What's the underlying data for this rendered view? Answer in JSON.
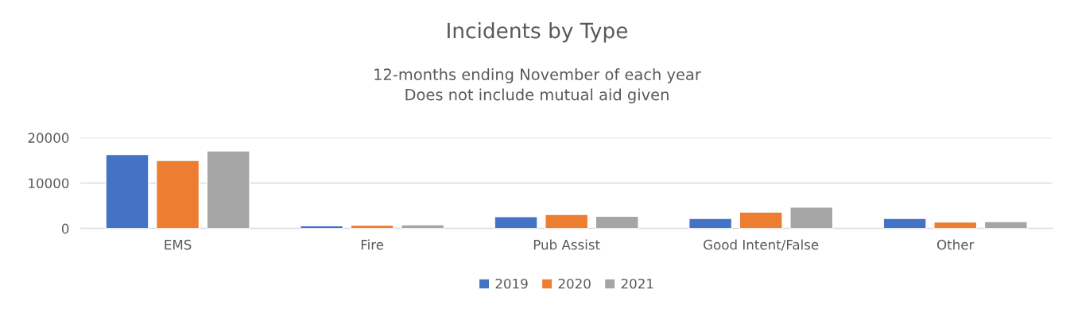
{
  "chart_data": {
    "type": "bar",
    "title": "Incidents by Type",
    "subtitle": "12-months ending November of each year\nDoes not include mutual aid given",
    "categories": [
      "EMS",
      "Fire",
      "Pub Assist",
      "Good Intent/False",
      "Other"
    ],
    "series": [
      {
        "name": "2019",
        "color": "#4472c4",
        "values": [
          16300,
          600,
          2600,
          2200,
          2200
        ]
      },
      {
        "name": "2020",
        "color": "#ed7d31",
        "values": [
          15000,
          700,
          3100,
          3600,
          1400
        ]
      },
      {
        "name": "2021",
        "color": "#a5a5a5",
        "values": [
          17100,
          800,
          2700,
          4700,
          1500
        ]
      }
    ],
    "ylim": [
      0,
      20000
    ],
    "yticks": [
      0,
      10000,
      20000
    ],
    "grid": "y",
    "legend": "bottom"
  }
}
